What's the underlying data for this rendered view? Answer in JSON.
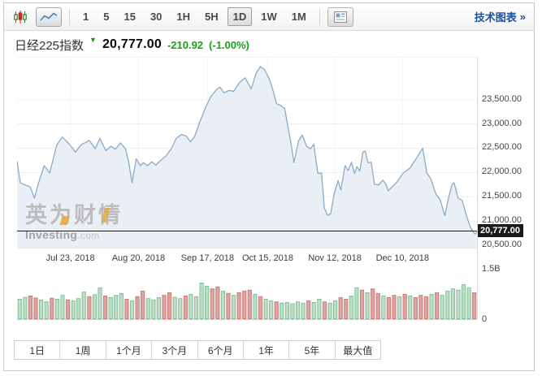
{
  "toolbar": {
    "chart_type_candlestick": "candlestick-chart",
    "chart_type_line": "line-chart",
    "intervals": [
      "1",
      "5",
      "15",
      "30",
      "1H",
      "5H",
      "1D",
      "1W",
      "1M"
    ],
    "selected_interval": "1D",
    "technical_chart_label": "技术图表",
    "technical_chart_arrow": "»"
  },
  "quote": {
    "name": "日经225指数",
    "direction_icon": "▼",
    "last": "20,777.00",
    "change": "-210.92",
    "change_percent": "(-1.00%)"
  },
  "watermark": {
    "line1": "英为财情",
    "brand": "Investing",
    "domain": ".com"
  },
  "periods": {
    "items": [
      "1日",
      "1周",
      "1个月",
      "3个月",
      "6个月",
      "1年",
      "5年",
      "最大值"
    ]
  },
  "chart_data": {
    "type": "area",
    "title": "日经225指数 1D 价格与成交量",
    "legend": "none",
    "grid": "on",
    "x_axis": {
      "labels": [
        "Jul 23, 2018",
        "Aug 20, 2018",
        "Sep 17, 2018",
        "Oct 15, 2018",
        "Nov 12, 2018",
        "Dec 10, 2018"
      ],
      "positions": [
        0.116,
        0.264,
        0.414,
        0.545,
        0.691,
        0.838
      ]
    },
    "y_axis": {
      "ylim": [
        20450,
        24365
      ],
      "ticks": [
        {
          "value": 23500,
          "label": "23,500.00"
        },
        {
          "value": 23000,
          "label": "23,000.00"
        },
        {
          "value": 22500,
          "label": "22,500.00"
        },
        {
          "value": 22000,
          "label": "22,000.00"
        },
        {
          "value": 21500,
          "label": "21,500.00"
        },
        {
          "value": 21000,
          "label": "21,000.00"
        },
        {
          "value": 20500,
          "label": "20,500.00"
        }
      ]
    },
    "last_price": {
      "value": 20777,
      "label": "20,777.00"
    },
    "price_points": [
      [
        0.0,
        22230
      ],
      [
        0.007,
        21790
      ],
      [
        0.018,
        21740
      ],
      [
        0.029,
        21700
      ],
      [
        0.038,
        21470
      ],
      [
        0.046,
        21760
      ],
      [
        0.059,
        22140
      ],
      [
        0.071,
        21990
      ],
      [
        0.086,
        22560
      ],
      [
        0.098,
        22730
      ],
      [
        0.113,
        22590
      ],
      [
        0.127,
        22420
      ],
      [
        0.139,
        22570
      ],
      [
        0.157,
        22660
      ],
      [
        0.17,
        22490
      ],
      [
        0.18,
        22700
      ],
      [
        0.193,
        22450
      ],
      [
        0.204,
        22540
      ],
      [
        0.214,
        22480
      ],
      [
        0.225,
        22610
      ],
      [
        0.236,
        22480
      ],
      [
        0.243,
        22200
      ],
      [
        0.25,
        21790
      ],
      [
        0.259,
        22280
      ],
      [
        0.268,
        22140
      ],
      [
        0.275,
        22200
      ],
      [
        0.284,
        22140
      ],
      [
        0.293,
        22220
      ],
      [
        0.302,
        22150
      ],
      [
        0.311,
        22240
      ],
      [
        0.323,
        22330
      ],
      [
        0.336,
        22500
      ],
      [
        0.346,
        22700
      ],
      [
        0.357,
        22780
      ],
      [
        0.368,
        22750
      ],
      [
        0.377,
        22630
      ],
      [
        0.386,
        22740
      ],
      [
        0.398,
        23060
      ],
      [
        0.411,
        23360
      ],
      [
        0.421,
        23560
      ],
      [
        0.432,
        23690
      ],
      [
        0.441,
        23760
      ],
      [
        0.45,
        23640
      ],
      [
        0.461,
        23690
      ],
      [
        0.471,
        23670
      ],
      [
        0.484,
        23860
      ],
      [
        0.496,
        23950
      ],
      [
        0.509,
        23720
      ],
      [
        0.52,
        24050
      ],
      [
        0.529,
        24180
      ],
      [
        0.538,
        24120
      ],
      [
        0.55,
        23890
      ],
      [
        0.557,
        23670
      ],
      [
        0.564,
        23420
      ],
      [
        0.573,
        23380
      ],
      [
        0.582,
        23320
      ],
      [
        0.589,
        22930
      ],
      [
        0.596,
        22580
      ],
      [
        0.602,
        22200
      ],
      [
        0.612,
        22650
      ],
      [
        0.62,
        22770
      ],
      [
        0.63,
        22530
      ],
      [
        0.638,
        22490
      ],
      [
        0.645,
        22580
      ],
      [
        0.654,
        21980
      ],
      [
        0.662,
        21990
      ],
      [
        0.668,
        21270
      ],
      [
        0.675,
        21120
      ],
      [
        0.682,
        21150
      ],
      [
        0.689,
        21550
      ],
      [
        0.698,
        21830
      ],
      [
        0.704,
        21640
      ],
      [
        0.713,
        22140
      ],
      [
        0.72,
        22040
      ],
      [
        0.727,
        22210
      ],
      [
        0.734,
        21980
      ],
      [
        0.739,
        22120
      ],
      [
        0.745,
        22030
      ],
      [
        0.752,
        22420
      ],
      [
        0.757,
        22440
      ],
      [
        0.763,
        22200
      ],
      [
        0.77,
        22210
      ],
      [
        0.777,
        21760
      ],
      [
        0.786,
        21740
      ],
      [
        0.795,
        21840
      ],
      [
        0.802,
        21760
      ],
      [
        0.807,
        21620
      ],
      [
        0.814,
        21690
      ],
      [
        0.825,
        21790
      ],
      [
        0.839,
        21980
      ],
      [
        0.854,
        22090
      ],
      [
        0.866,
        22260
      ],
      [
        0.882,
        22500
      ],
      [
        0.891,
        21990
      ],
      [
        0.9,
        21860
      ],
      [
        0.911,
        21550
      ],
      [
        0.92,
        21440
      ],
      [
        0.93,
        21110
      ],
      [
        0.938,
        21470
      ],
      [
        0.946,
        21760
      ],
      [
        0.95,
        21790
      ],
      [
        0.959,
        21470
      ],
      [
        0.968,
        21420
      ],
      [
        0.977,
        21110
      ],
      [
        0.986,
        20860
      ],
      [
        0.995,
        20730
      ],
      [
        1.0,
        20777
      ]
    ],
    "volume": {
      "ylim_billions": [
        0,
        1.5
      ],
      "ticks": [
        {
          "value": 1.5,
          "label": "1.5B"
        },
        {
          "value": 0,
          "label": "0"
        }
      ],
      "bars": [
        [
          0.6,
          "u"
        ],
        [
          0.66,
          "u"
        ],
        [
          0.7,
          "d"
        ],
        [
          0.64,
          "d"
        ],
        [
          0.58,
          "u"
        ],
        [
          0.52,
          "u"
        ],
        [
          0.63,
          "d"
        ],
        [
          0.6,
          "u"
        ],
        [
          0.72,
          "u"
        ],
        [
          0.58,
          "d"
        ],
        [
          0.55,
          "u"
        ],
        [
          0.62,
          "u"
        ],
        [
          0.82,
          "u"
        ],
        [
          0.68,
          "d"
        ],
        [
          0.74,
          "u"
        ],
        [
          0.95,
          "u"
        ],
        [
          0.7,
          "d"
        ],
        [
          0.65,
          "u"
        ],
        [
          0.72,
          "u"
        ],
        [
          0.78,
          "u"
        ],
        [
          0.6,
          "d"
        ],
        [
          0.55,
          "u"
        ],
        [
          0.68,
          "d"
        ],
        [
          0.85,
          "d"
        ],
        [
          0.62,
          "u"
        ],
        [
          0.58,
          "u"
        ],
        [
          0.65,
          "u"
        ],
        [
          0.72,
          "d"
        ],
        [
          0.8,
          "d"
        ],
        [
          0.66,
          "u"
        ],
        [
          0.62,
          "u"
        ],
        [
          0.7,
          "d"
        ],
        [
          0.75,
          "u"
        ],
        [
          0.68,
          "u"
        ],
        [
          1.1,
          "u"
        ],
        [
          1.0,
          "u"
        ],
        [
          0.92,
          "d"
        ],
        [
          0.98,
          "d"
        ],
        [
          0.85,
          "u"
        ],
        [
          0.78,
          "d"
        ],
        [
          0.72,
          "u"
        ],
        [
          0.8,
          "d"
        ],
        [
          0.85,
          "d"
        ],
        [
          0.88,
          "d"
        ],
        [
          0.75,
          "u"
        ],
        [
          0.68,
          "d"
        ],
        [
          0.6,
          "u"
        ],
        [
          0.55,
          "u"
        ],
        [
          0.52,
          "d"
        ],
        [
          0.48,
          "u"
        ],
        [
          0.5,
          "u"
        ],
        [
          0.46,
          "u"
        ],
        [
          0.52,
          "u"
        ],
        [
          0.48,
          "u"
        ],
        [
          0.55,
          "d"
        ],
        [
          0.5,
          "u"
        ],
        [
          0.6,
          "u"
        ],
        [
          0.52,
          "d"
        ],
        [
          0.48,
          "u"
        ],
        [
          0.55,
          "u"
        ],
        [
          0.65,
          "d"
        ],
        [
          0.6,
          "d"
        ],
        [
          0.7,
          "u"
        ],
        [
          0.95,
          "u"
        ],
        [
          0.88,
          "d"
        ],
        [
          0.8,
          "u"
        ],
        [
          0.92,
          "d"
        ],
        [
          0.78,
          "d"
        ],
        [
          0.7,
          "u"
        ],
        [
          0.65,
          "d"
        ],
        [
          0.72,
          "d"
        ],
        [
          0.68,
          "u"
        ],
        [
          0.75,
          "d"
        ],
        [
          0.7,
          "u"
        ],
        [
          0.65,
          "d"
        ],
        [
          0.72,
          "d"
        ],
        [
          0.68,
          "d"
        ],
        [
          0.75,
          "u"
        ],
        [
          0.8,
          "d"
        ],
        [
          0.72,
          "u"
        ],
        [
          0.85,
          "u"
        ],
        [
          0.92,
          "u"
        ],
        [
          0.88,
          "u"
        ],
        [
          1.05,
          "u"
        ],
        [
          0.95,
          "u"
        ],
        [
          0.8,
          "d"
        ]
      ]
    },
    "colors": {
      "line": "#8cabc7",
      "fill": "#e9eff5",
      "grid_h": "#ededed",
      "grid_v": "#f4f4f4",
      "last_price_line": "#1c1c1c",
      "up_fill": "#bcdec7",
      "up_stroke": "#8abe9a",
      "down_fill": "#dfa29e",
      "down_stroke": "#cb7f7a",
      "change_green": "#18a118",
      "link_blue": "#1b5198"
    }
  }
}
